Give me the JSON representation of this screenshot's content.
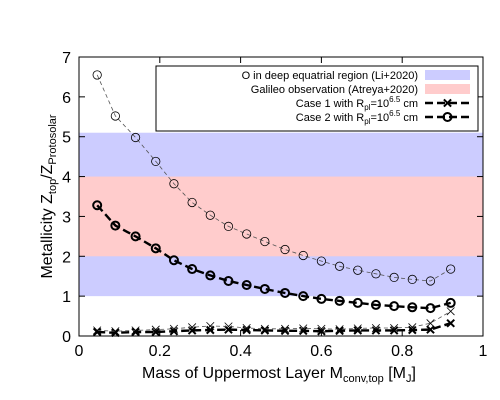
{
  "chart_data": {
    "type": "line",
    "xlabel": {
      "main": "Mass of Uppermost Layer M",
      "sub": "conv,top",
      "unit_open": " [M",
      "unit_sub": "J",
      "unit_close": "]"
    },
    "ylabel": {
      "main": "Metallicity Z",
      "sub1": "top",
      "mid": "/Z",
      "sub2": "Protosolar"
    },
    "xlim": [
      0,
      1
    ],
    "ylim": [
      0,
      7
    ],
    "xticks": [
      "0",
      "0.2",
      "0.4",
      "0.6",
      "0.8",
      "1"
    ],
    "yticks": [
      "0",
      "1",
      "2",
      "3",
      "4",
      "5",
      "6",
      "7"
    ],
    "grid": false,
    "legend_position": "top-right",
    "bands": [
      {
        "name": "O in deep equatrial region (Li+2020)",
        "y0": 1.0,
        "y1": 5.1,
        "color": "#ccccff"
      },
      {
        "name": "Galileo observation (Atreya+2020)",
        "y0": 2.0,
        "y1": 4.0,
        "color": "#ffcccc"
      }
    ],
    "legend": [
      {
        "kind": "band",
        "label": "O in deep equatrial region (Li+2020)",
        "color": "#ccccff"
      },
      {
        "kind": "band",
        "label": "Galileo observation (Atreya+2020)",
        "color": "#ffcccc"
      },
      {
        "kind": "cross",
        "label_main": "Case 1 with R",
        "label_sub": "pl",
        "label_eq": "=10",
        "label_sup": "6.5",
        "label_unit": " cm"
      },
      {
        "kind": "circle",
        "label_main": "Case 2 with R",
        "label_sub": "pl",
        "label_eq": "=10",
        "label_sup": "6.5",
        "label_unit": " cm"
      }
    ],
    "series": [
      {
        "name": "Case 1 with Rpl=10^6.5 cm",
        "marker": "cross",
        "style": "thick-dashed",
        "x": [
          0.045,
          0.09,
          0.14,
          0.19,
          0.235,
          0.28,
          0.325,
          0.37,
          0.415,
          0.46,
          0.51,
          0.555,
          0.6,
          0.645,
          0.69,
          0.735,
          0.78,
          0.825,
          0.87,
          0.92
        ],
        "y": [
          0.1,
          0.08,
          0.1,
          0.1,
          0.12,
          0.14,
          0.15,
          0.16,
          0.15,
          0.14,
          0.13,
          0.13,
          0.12,
          0.13,
          0.14,
          0.14,
          0.14,
          0.15,
          0.16,
          0.32
        ]
      },
      {
        "name": "Case 1 with Rpl=10^6.5 cm (thin)",
        "marker": "cross",
        "style": "thin-dashed",
        "x": [
          0.045,
          0.09,
          0.14,
          0.19,
          0.235,
          0.28,
          0.325,
          0.37,
          0.415,
          0.46,
          0.51,
          0.555,
          0.6,
          0.645,
          0.69,
          0.735,
          0.78,
          0.825,
          0.87,
          0.92
        ],
        "y": [
          0.14,
          0.12,
          0.14,
          0.16,
          0.18,
          0.22,
          0.25,
          0.24,
          0.2,
          0.18,
          0.18,
          0.19,
          0.18,
          0.17,
          0.19,
          0.2,
          0.2,
          0.22,
          0.32,
          0.62
        ]
      },
      {
        "name": "Case 2 with Rpl=10^6.5 cm",
        "marker": "circle",
        "style": "thick-dashed",
        "x": [
          0.045,
          0.09,
          0.14,
          0.19,
          0.235,
          0.28,
          0.325,
          0.37,
          0.415,
          0.46,
          0.51,
          0.555,
          0.6,
          0.645,
          0.69,
          0.735,
          0.78,
          0.825,
          0.87,
          0.92
        ],
        "y": [
          3.28,
          2.77,
          2.5,
          2.2,
          1.9,
          1.68,
          1.52,
          1.38,
          1.28,
          1.18,
          1.08,
          1.0,
          0.93,
          0.88,
          0.83,
          0.78,
          0.75,
          0.72,
          0.7,
          0.83
        ]
      },
      {
        "name": "Case 2 with Rpl=10^6.5 cm (thin)",
        "marker": "circle",
        "style": "thin-dashed",
        "x": [
          0.045,
          0.09,
          0.14,
          0.19,
          0.235,
          0.28,
          0.325,
          0.37,
          0.415,
          0.46,
          0.51,
          0.555,
          0.6,
          0.645,
          0.69,
          0.735,
          0.78,
          0.825,
          0.87,
          0.92
        ],
        "y": [
          6.55,
          5.52,
          4.98,
          4.38,
          3.82,
          3.35,
          3.03,
          2.75,
          2.56,
          2.37,
          2.17,
          2.02,
          1.88,
          1.75,
          1.65,
          1.56,
          1.47,
          1.42,
          1.38,
          1.68
        ]
      }
    ]
  }
}
